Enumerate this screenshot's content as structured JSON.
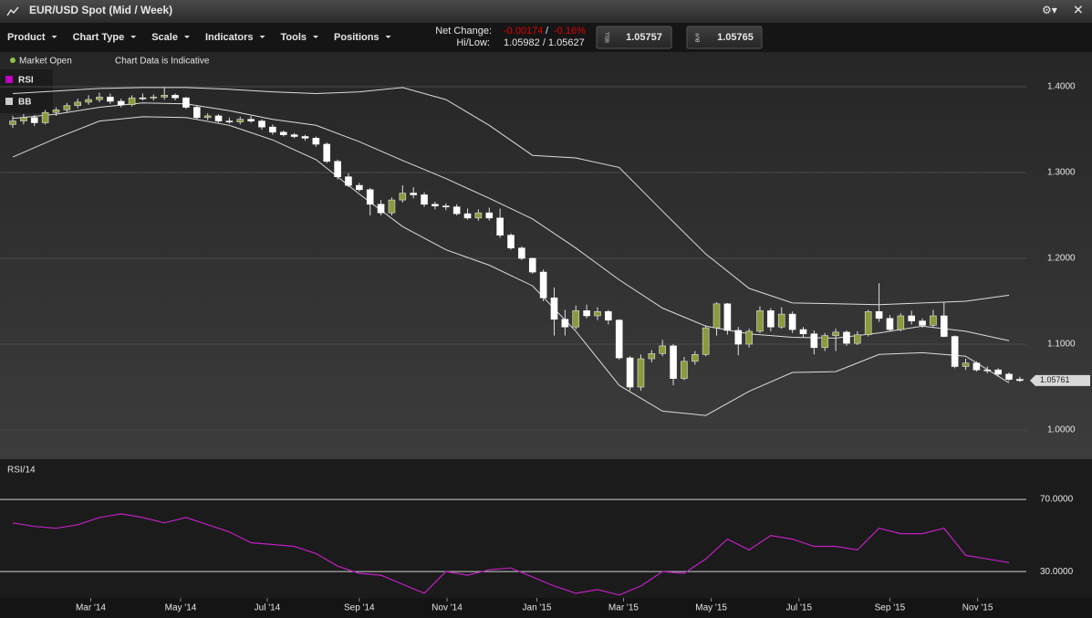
{
  "header": {
    "title": "EUR/USD Spot (Mid / Week)"
  },
  "toolbar": {
    "menus": [
      "Product",
      "Chart Type",
      "Scale",
      "Indicators",
      "Tools",
      "Positions"
    ],
    "net_change_label": "Net Change:",
    "net_change": "-0.00174",
    "net_change_sep": "/",
    "net_change_pct": "-0.16%",
    "hilow_label": "Hi/Low:",
    "hilow": "1.05982 / 1.05627",
    "sell_label": "SELL",
    "sell": "1.05757",
    "buy_label": "BUY",
    "buy": "1.05765"
  },
  "status": {
    "market": "Market Open",
    "note": "Chart Data is Indicative"
  },
  "legend": [
    {
      "name": "RSI",
      "color": "#c000c0"
    },
    {
      "name": "BB",
      "color": "#cccccc"
    }
  ],
  "chart_data": [
    {
      "type": "candlestick",
      "up_color": "#8c9a3c",
      "down_color": "#ffffff",
      "xlim": [
        -1.18,
        93.6
      ],
      "ylim": [
        0.966,
        1.4404
      ],
      "yticks": [
        {
          "value": 1.4,
          "label": "1.4000"
        },
        {
          "value": 1.3,
          "label": "1.3000"
        },
        {
          "value": 1.2,
          "label": "1.2000"
        },
        {
          "value": 1.1,
          "label": "1.1000"
        },
        {
          "value": 1.0,
          "label": "1.0000"
        }
      ],
      "grid": true,
      "last_price": {
        "value": 1.05761,
        "label": "1.05761"
      },
      "candles": [
        [
          1.356,
          1.366,
          1.352,
          1.36
        ],
        [
          1.36,
          1.368,
          1.356,
          1.364
        ],
        [
          1.364,
          1.367,
          1.354,
          1.358
        ],
        [
          1.358,
          1.373,
          1.356,
          1.37
        ],
        [
          1.37,
          1.376,
          1.366,
          1.373
        ],
        [
          1.373,
          1.381,
          1.37,
          1.378
        ],
        [
          1.378,
          1.386,
          1.375,
          1.382
        ],
        [
          1.382,
          1.39,
          1.379,
          1.385
        ],
        [
          1.385,
          1.393,
          1.382,
          1.388
        ],
        [
          1.388,
          1.392,
          1.38,
          1.383
        ],
        [
          1.383,
          1.386,
          1.376,
          1.379
        ],
        [
          1.379,
          1.39,
          1.377,
          1.387
        ],
        [
          1.387,
          1.392,
          1.384,
          1.387
        ],
        [
          1.387,
          1.391,
          1.384,
          1.388
        ],
        [
          1.388,
          1.399,
          1.385,
          1.39
        ],
        [
          1.39,
          1.392,
          1.384,
          1.387
        ],
        [
          1.387,
          1.388,
          1.374,
          1.376
        ],
        [
          1.376,
          1.378,
          1.362,
          1.364
        ],
        [
          1.364,
          1.369,
          1.361,
          1.366
        ],
        [
          1.366,
          1.368,
          1.358,
          1.36
        ],
        [
          1.36,
          1.364,
          1.357,
          1.359
        ],
        [
          1.359,
          1.365,
          1.356,
          1.362
        ],
        [
          1.362,
          1.366,
          1.358,
          1.36
        ],
        [
          1.36,
          1.362,
          1.35,
          1.353
        ],
        [
          1.353,
          1.356,
          1.344,
          1.347
        ],
        [
          1.347,
          1.349,
          1.342,
          1.344
        ],
        [
          1.344,
          1.346,
          1.34,
          1.342
        ],
        [
          1.342,
          1.344,
          1.337,
          1.34
        ],
        [
          1.34,
          1.342,
          1.33,
          1.333
        ],
        [
          1.333,
          1.335,
          1.311,
          1.313
        ],
        [
          1.313,
          1.315,
          1.292,
          1.295
        ],
        [
          1.295,
          1.299,
          1.283,
          1.285
        ],
        [
          1.285,
          1.288,
          1.278,
          1.28
        ],
        [
          1.28,
          1.282,
          1.25,
          1.263
        ],
        [
          1.263,
          1.268,
          1.25,
          1.253
        ],
        [
          1.253,
          1.271,
          1.25,
          1.268
        ],
        [
          1.268,
          1.285,
          1.265,
          1.276
        ],
        [
          1.276,
          1.283,
          1.27,
          1.274
        ],
        [
          1.274,
          1.277,
          1.26,
          1.263
        ],
        [
          1.263,
          1.266,
          1.257,
          1.261
        ],
        [
          1.261,
          1.264,
          1.256,
          1.26
        ],
        [
          1.26,
          1.263,
          1.25,
          1.252
        ],
        [
          1.252,
          1.258,
          1.245,
          1.247
        ],
        [
          1.247,
          1.257,
          1.244,
          1.253
        ],
        [
          1.253,
          1.259,
          1.244,
          1.247
        ],
        [
          1.247,
          1.258,
          1.224,
          1.227
        ],
        [
          1.227,
          1.229,
          1.21,
          1.212
        ],
        [
          1.212,
          1.214,
          1.198,
          1.2
        ],
        [
          1.2,
          1.201,
          1.182,
          1.184
        ],
        [
          1.184,
          1.187,
          1.15,
          1.154
        ],
        [
          1.154,
          1.166,
          1.11,
          1.129
        ],
        [
          1.129,
          1.14,
          1.11,
          1.12
        ],
        [
          1.12,
          1.145,
          1.117,
          1.139
        ],
        [
          1.139,
          1.146,
          1.13,
          1.133
        ],
        [
          1.133,
          1.143,
          1.128,
          1.138
        ],
        [
          1.138,
          1.14,
          1.123,
          1.128
        ],
        [
          1.128,
          1.129,
          1.082,
          1.084
        ],
        [
          1.084,
          1.086,
          1.046,
          1.05
        ],
        [
          1.05,
          1.088,
          1.046,
          1.083
        ],
        [
          1.083,
          1.093,
          1.079,
          1.089
        ],
        [
          1.089,
          1.105,
          1.086,
          1.098
        ],
        [
          1.098,
          1.1,
          1.052,
          1.06
        ],
        [
          1.06,
          1.085,
          1.058,
          1.08
        ],
        [
          1.08,
          1.092,
          1.076,
          1.088
        ],
        [
          1.088,
          1.122,
          1.086,
          1.119
        ],
        [
          1.119,
          1.149,
          1.11,
          1.147
        ],
        [
          1.147,
          1.148,
          1.111,
          1.116
        ],
        [
          1.116,
          1.12,
          1.087,
          1.1
        ],
        [
          1.1,
          1.118,
          1.096,
          1.115
        ],
        [
          1.115,
          1.144,
          1.113,
          1.139
        ],
        [
          1.139,
          1.142,
          1.115,
          1.12
        ],
        [
          1.12,
          1.143,
          1.118,
          1.135
        ],
        [
          1.135,
          1.138,
          1.113,
          1.117
        ],
        [
          1.117,
          1.12,
          1.108,
          1.112
        ],
        [
          1.112,
          1.116,
          1.088,
          1.096
        ],
        [
          1.096,
          1.113,
          1.092,
          1.11
        ],
        [
          1.11,
          1.118,
          1.092,
          1.114
        ],
        [
          1.114,
          1.116,
          1.098,
          1.101
        ],
        [
          1.101,
          1.115,
          1.099,
          1.111
        ],
        [
          1.111,
          1.14,
          1.109,
          1.138
        ],
        [
          1.138,
          1.171,
          1.126,
          1.13
        ],
        [
          1.13,
          1.134,
          1.115,
          1.117
        ],
        [
          1.117,
          1.136,
          1.115,
          1.133
        ],
        [
          1.133,
          1.139,
          1.123,
          1.127
        ],
        [
          1.127,
          1.13,
          1.119,
          1.122
        ],
        [
          1.122,
          1.14,
          1.119,
          1.133
        ],
        [
          1.133,
          1.149,
          1.108,
          1.109
        ],
        [
          1.109,
          1.11,
          1.072,
          1.074
        ],
        [
          1.074,
          1.083,
          1.07,
          1.078
        ],
        [
          1.078,
          1.08,
          1.068,
          1.07
        ],
        [
          1.07,
          1.074,
          1.066,
          1.07
        ],
        [
          1.07,
          1.072,
          1.062,
          1.065
        ],
        [
          1.065,
          1.067,
          1.057,
          1.059
        ],
        [
          1.059,
          1.062,
          1.056,
          1.0576
        ]
      ],
      "bands": {
        "color": "#dcdcdc",
        "x": [
          0,
          4,
          8,
          12,
          16,
          20,
          24,
          28,
          32,
          36,
          40,
          44,
          48,
          52,
          56,
          60,
          64,
          68,
          72,
          76,
          80,
          84,
          88,
          92
        ],
        "upper": [
          1.392,
          1.395,
          1.398,
          1.399,
          1.399,
          1.397,
          1.394,
          1.392,
          1.394,
          1.399,
          1.385,
          1.355,
          1.32,
          1.317,
          1.306,
          1.255,
          1.205,
          1.165,
          1.148,
          1.147,
          1.146,
          1.148,
          1.15,
          1.157
        ],
        "middle": [
          1.363,
          1.368,
          1.376,
          1.381,
          1.38,
          1.372,
          1.362,
          1.355,
          1.336,
          1.314,
          1.293,
          1.27,
          1.246,
          1.212,
          1.175,
          1.142,
          1.121,
          1.112,
          1.108,
          1.107,
          1.113,
          1.121,
          1.115,
          1.104
        ],
        "lower": [
          1.318,
          1.34,
          1.36,
          1.365,
          1.364,
          1.355,
          1.338,
          1.315,
          1.275,
          1.237,
          1.21,
          1.192,
          1.168,
          1.115,
          1.052,
          1.022,
          1.017,
          1.045,
          1.067,
          1.068,
          1.088,
          1.09,
          1.086,
          1.055
        ]
      }
    },
    {
      "type": "line",
      "title": "RSI/14",
      "color": "#c020c0",
      "xlim": [
        -1.18,
        93.6
      ],
      "ylim": [
        15.4,
        91.3
      ],
      "yticks": [
        {
          "value": 70,
          "label": "70.0000"
        },
        {
          "value": 30,
          "label": "30.0000"
        }
      ],
      "x": [
        0,
        2,
        4,
        6,
        8,
        10,
        12,
        14,
        16,
        18,
        20,
        22,
        24,
        26,
        28,
        30,
        32,
        34,
        36,
        38,
        40,
        42,
        44,
        46,
        48,
        50,
        52,
        54,
        56,
        58,
        60,
        62,
        64,
        66,
        68,
        70,
        72,
        74,
        76,
        78,
        80,
        82,
        84,
        86,
        88,
        90,
        92
      ],
      "values": [
        57,
        55,
        54,
        56,
        60,
        62,
        60,
        57,
        60,
        56,
        52,
        46,
        45,
        44,
        40,
        33,
        29,
        28,
        23,
        18,
        30,
        28,
        31,
        32,
        27,
        22,
        18,
        20,
        17,
        22,
        30,
        29,
        37,
        48,
        42,
        50,
        48,
        44,
        44,
        42,
        54,
        51,
        51,
        54,
        39,
        37,
        35
      ],
      "xticks": [
        {
          "value": 7.2,
          "label": "Mar '14"
        },
        {
          "value": 15.5,
          "label": "May '14"
        },
        {
          "value": 23.5,
          "label": "Jul '14"
        },
        {
          "value": 32,
          "label": "Sep '14"
        },
        {
          "value": 40.1,
          "label": "Nov '14"
        },
        {
          "value": 48.4,
          "label": "Jan '15"
        },
        {
          "value": 56.4,
          "label": "Mar '15"
        },
        {
          "value": 64.5,
          "label": "May '15"
        },
        {
          "value": 72.6,
          "label": "Jul '15"
        },
        {
          "value": 81,
          "label": "Sep '15"
        },
        {
          "value": 89.1,
          "label": "Nov '15"
        }
      ]
    }
  ]
}
